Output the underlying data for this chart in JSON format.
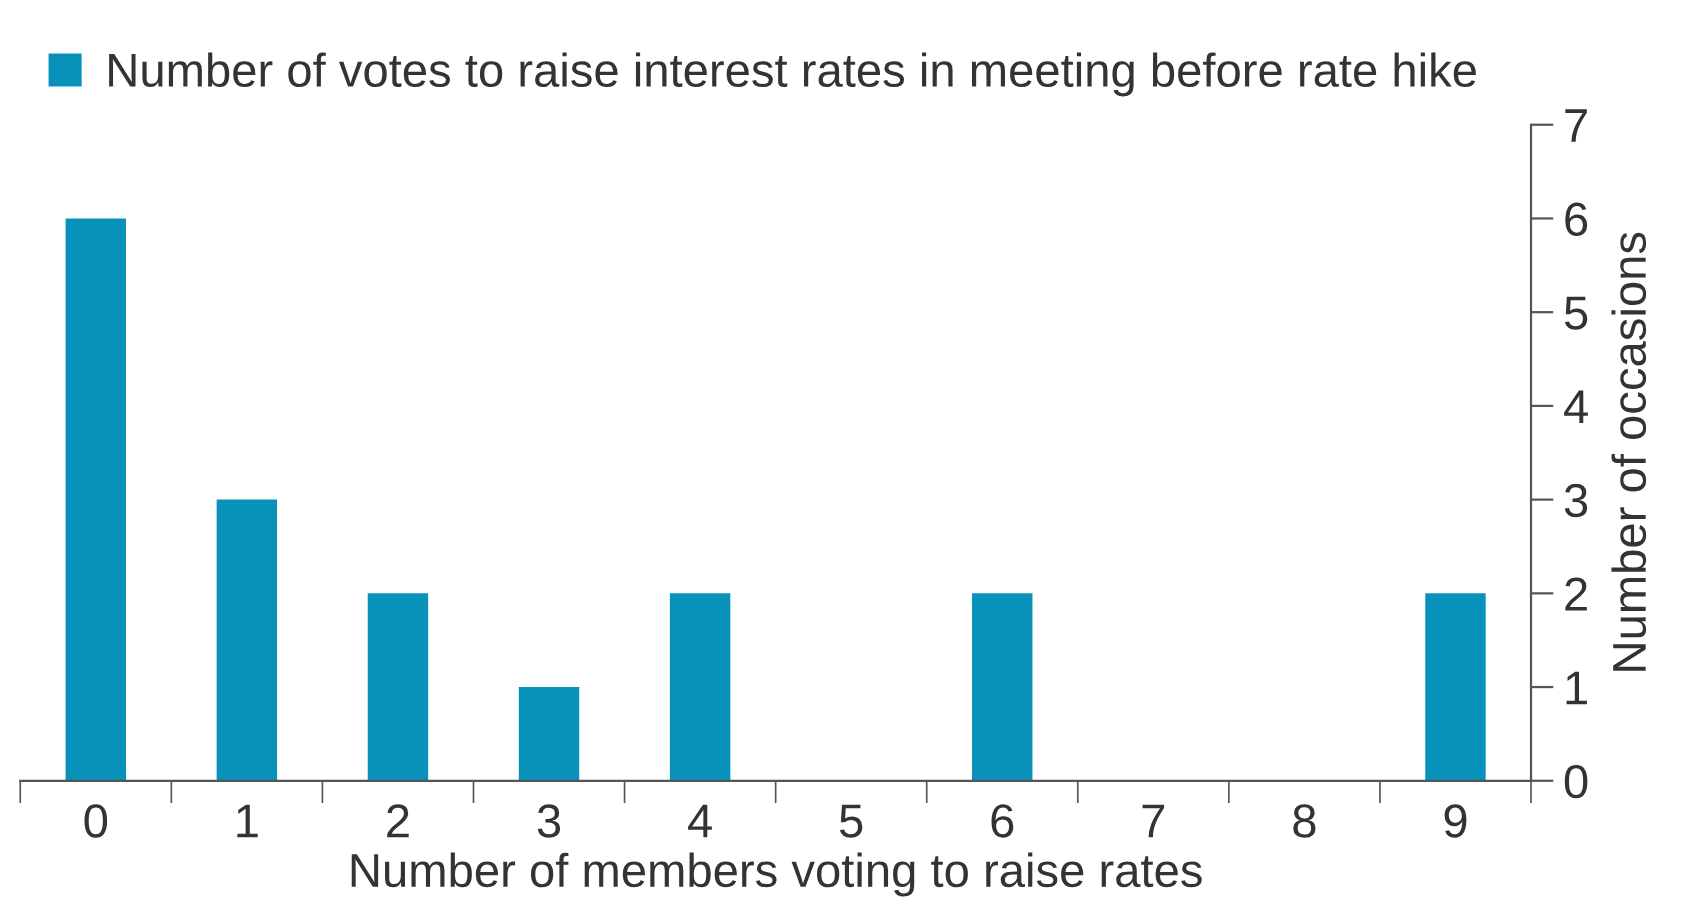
{
  "chart_data": {
    "type": "bar",
    "xlabel": "Number of members voting to raise rates",
    "ylabel": "Number of occasions",
    "categories": [
      "0",
      "1",
      "2",
      "3",
      "4",
      "5",
      "6",
      "7",
      "8",
      "9"
    ],
    "series": [
      {
        "name": "Number of votes to raise interest rates in meeting before rate hike",
        "color": "#0892b9",
        "values": [
          6,
          3,
          2,
          1,
          2,
          0,
          2,
          0,
          0,
          2
        ]
      }
    ],
    "ylim": [
      0,
      7
    ],
    "yticks": [
      0,
      1,
      2,
      3,
      4,
      5,
      6,
      7
    ],
    "grid": false,
    "legend": "top left"
  }
}
